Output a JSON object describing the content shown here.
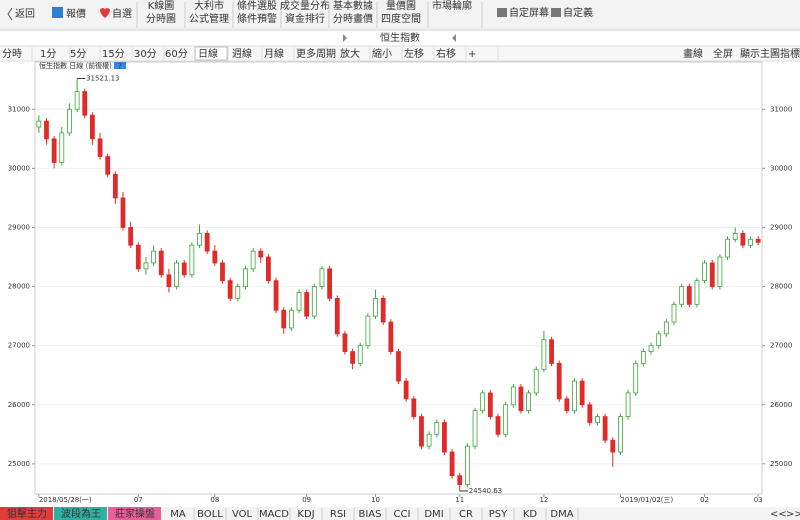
{
  "toolbar": {
    "back": "返回",
    "quote": "報價",
    "watch": "自選",
    "buttons": [
      [
        "K線圖",
        "分時圖"
      ],
      [
        "大利市",
        "公式管理"
      ],
      [
        "條件選股",
        "條件預警"
      ],
      [
        "成交量分布",
        "資金排行"
      ],
      [
        "基本數據",
        "分時畫價"
      ],
      [
        "量價圖",
        "四度空間"
      ],
      [
        "市場輪廓"
      ]
    ],
    "custom_screen": "自定屏幕",
    "customize": "自定義"
  },
  "periods": [
    "分時",
    "1分",
    "5分",
    "15分",
    "30分",
    "60分",
    "日線",
    "週線",
    "月線",
    "更多周期",
    "放大",
    "縮小",
    "左移",
    "右移",
    "+"
  ],
  "selected_period": "日線",
  "right_tools": [
    "畫線",
    "全屏",
    "顯示主圖指標"
  ],
  "indicators": [
    "狙擊主力",
    "波段為王",
    "莊家操盤",
    "MA",
    "BOLL",
    "VOL",
    "MACD",
    "KDJ",
    "RSI",
    "BIAS",
    "CCI",
    "DMI",
    "CR",
    "PSY",
    "KD",
    "DMA"
  ],
  "pager": [
    "<<",
    ">>"
  ],
  "chart_data": {
    "type": "candlestick",
    "title": "恒生指數",
    "legend": "恒生指數 日線 (前復權)",
    "help": "?",
    "up_color": "#3aa63a",
    "down_color": "#e02b2b",
    "ylim": [
      24490,
      31800
    ],
    "yticks": [
      25000,
      26000,
      27000,
      28000,
      29000,
      30000,
      31000
    ],
    "xlim": [
      -0.5,
      94.5
    ],
    "xticks": [
      {
        "value": 0,
        "label": "2018/05/28(一)"
      },
      {
        "value": 13,
        "label": "07"
      },
      {
        "value": 23,
        "label": "08"
      },
      {
        "value": 35,
        "label": "09"
      },
      {
        "value": 44,
        "label": "10"
      },
      {
        "value": 55,
        "label": "11"
      },
      {
        "value": 66,
        "label": "12"
      },
      {
        "value": 76,
        "label": "2019/01/02(三)"
      },
      {
        "value": 87,
        "label": "02"
      },
      {
        "value": 94,
        "label": "03"
      }
    ],
    "max_label_candle": 5,
    "min_label_candle": 55,
    "candles": [
      [
        30700,
        30900,
        30600,
        30800
      ],
      [
        30800,
        30850,
        30400,
        30500
      ],
      [
        30500,
        30550,
        30000,
        30100
      ],
      [
        30100,
        30700,
        30050,
        30600
      ],
      [
        30600,
        31100,
        30550,
        31000
      ],
      [
        31000,
        31521.13,
        30950,
        31300
      ],
      [
        31300,
        31350,
        30850,
        30900
      ],
      [
        30900,
        30950,
        30400,
        30500
      ],
      [
        30500,
        30600,
        30150,
        30200
      ],
      [
        30200,
        30250,
        29850,
        29900
      ],
      [
        29900,
        29950,
        29400,
        29500
      ],
      [
        29500,
        29600,
        28950,
        29000
      ],
      [
        29000,
        29100,
        28650,
        28700
      ],
      [
        28700,
        28750,
        28250,
        28300
      ],
      [
        28300,
        28500,
        28200,
        28400
      ],
      [
        28400,
        28700,
        28350,
        28600
      ],
      [
        28600,
        28650,
        28150,
        28200
      ],
      [
        28200,
        28300,
        27900,
        28000
      ],
      [
        28000,
        28450,
        27950,
        28400
      ],
      [
        28400,
        28450,
        28150,
        28200
      ],
      [
        28200,
        28750,
        28150,
        28700
      ],
      [
        28700,
        29050,
        28650,
        28900
      ],
      [
        28900,
        28950,
        28550,
        28600
      ],
      [
        28600,
        28700,
        28350,
        28400
      ],
      [
        28400,
        28450,
        28050,
        28100
      ],
      [
        28100,
        28150,
        27750,
        27800
      ],
      [
        27800,
        28050,
        27750,
        28000
      ],
      [
        28000,
        28350,
        27950,
        28300
      ],
      [
        28300,
        28650,
        28250,
        28600
      ],
      [
        28600,
        28650,
        28400,
        28500
      ],
      [
        28500,
        28550,
        28050,
        28100
      ],
      [
        28100,
        28150,
        27550,
        27600
      ],
      [
        27600,
        27650,
        27200,
        27300
      ],
      [
        27300,
        27650,
        27250,
        27600
      ],
      [
        27600,
        27950,
        27550,
        27900
      ],
      [
        27900,
        27950,
        27450,
        27500
      ],
      [
        27500,
        28050,
        27450,
        28000
      ],
      [
        28000,
        28350,
        27950,
        28300
      ],
      [
        28300,
        28350,
        27750,
        27800
      ],
      [
        27800,
        27850,
        27150,
        27200
      ],
      [
        27200,
        27250,
        26850,
        26900
      ],
      [
        26900,
        26950,
        26600,
        26700
      ],
      [
        26700,
        27050,
        26650,
        27000
      ],
      [
        27000,
        27550,
        26950,
        27500
      ],
      [
        27500,
        27950,
        27450,
        27800
      ],
      [
        27800,
        27850,
        27350,
        27400
      ],
      [
        27400,
        27450,
        26850,
        26900
      ],
      [
        26900,
        26950,
        26350,
        26400
      ],
      [
        26400,
        26450,
        26050,
        26100
      ],
      [
        26100,
        26150,
        25750,
        25800
      ],
      [
        25800,
        25850,
        25250,
        25300
      ],
      [
        25300,
        25550,
        25250,
        25500
      ],
      [
        25500,
        25750,
        25450,
        25700
      ],
      [
        25700,
        25750,
        25150,
        25200
      ],
      [
        25200,
        25250,
        24750,
        24800
      ],
      [
        24800,
        24850,
        24540.63,
        24650
      ],
      [
        24650,
        25350,
        24600,
        25300
      ],
      [
        25300,
        25950,
        25250,
        25900
      ],
      [
        25900,
        26250,
        25850,
        26200
      ],
      [
        26200,
        26250,
        25750,
        25800
      ],
      [
        25800,
        25850,
        25450,
        25500
      ],
      [
        25500,
        26050,
        25450,
        26000
      ],
      [
        26000,
        26350,
        25950,
        26300
      ],
      [
        26300,
        26350,
        25850,
        25900
      ],
      [
        25900,
        26250,
        25850,
        26200
      ],
      [
        26200,
        26650,
        26150,
        26600
      ],
      [
        26600,
        27250,
        26550,
        27100
      ],
      [
        27100,
        27150,
        26650,
        26700
      ],
      [
        26700,
        26750,
        26050,
        26100
      ],
      [
        26100,
        26150,
        25850,
        25900
      ],
      [
        25900,
        26450,
        25850,
        26400
      ],
      [
        26400,
        26450,
        25950,
        26000
      ],
      [
        26000,
        26050,
        25650,
        25700
      ],
      [
        25700,
        25850,
        25650,
        25800
      ],
      [
        25800,
        25850,
        25350,
        25400
      ],
      [
        25400,
        25450,
        24950,
        25200
      ],
      [
        25200,
        25850,
        25150,
        25800
      ],
      [
        25800,
        26250,
        25750,
        26200
      ],
      [
        26200,
        26750,
        26150,
        26700
      ],
      [
        26700,
        26950,
        26650,
        26900
      ],
      [
        26900,
        27050,
        26850,
        27000
      ],
      [
        27000,
        27250,
        26950,
        27200
      ],
      [
        27200,
        27450,
        27150,
        27400
      ],
      [
        27400,
        27750,
        27350,
        27700
      ],
      [
        27700,
        28050,
        27650,
        28000
      ],
      [
        28000,
        28050,
        27650,
        27700
      ],
      [
        27700,
        28150,
        27650,
        28100
      ],
      [
        28100,
        28450,
        28050,
        28400
      ],
      [
        28400,
        28450,
        27950,
        28000
      ],
      [
        28000,
        28550,
        27950,
        28500
      ],
      [
        28500,
        28850,
        28450,
        28800
      ],
      [
        28800,
        29000,
        28750,
        28900
      ],
      [
        28900,
        28950,
        28650,
        28700
      ],
      [
        28700,
        28850,
        28650,
        28800
      ],
      [
        28800,
        28850,
        28700,
        28750
      ]
    ]
  }
}
